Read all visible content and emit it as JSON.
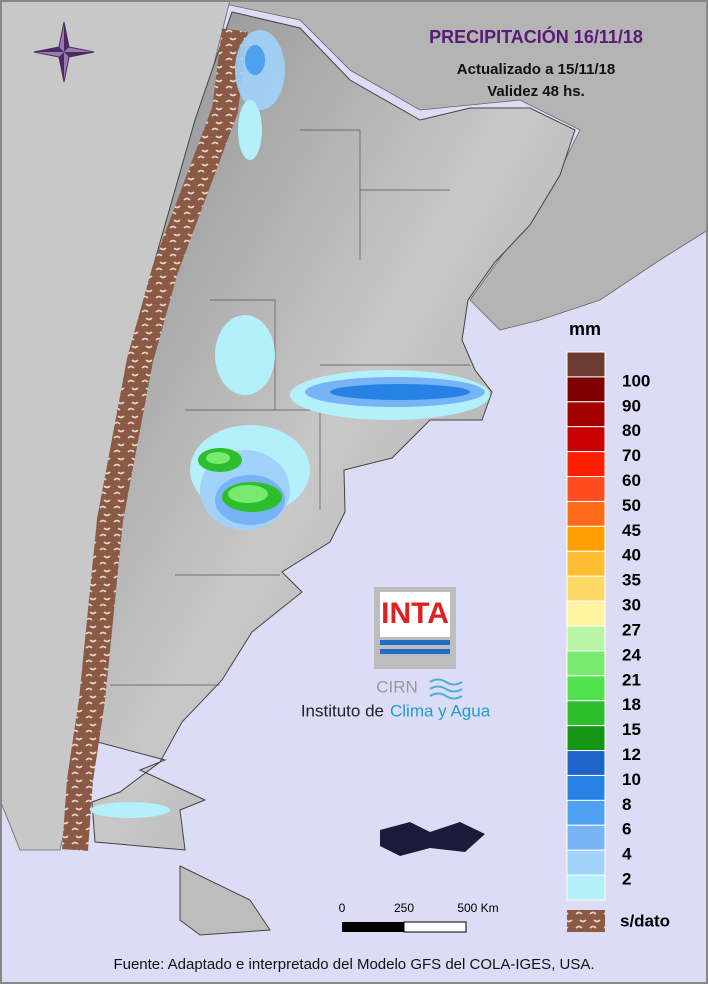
{
  "title": "PRECIPITACIÓN 16/11/18",
  "subtitle": [
    "Actualizado a 15/11/18",
    "Validez 48 hs."
  ],
  "legend": {
    "unit": "mm",
    "colors": [
      "#6b3b32",
      "#800000",
      "#a50000",
      "#c80000",
      "#ff1e00",
      "#ff4b1e",
      "#ff6a1a",
      "#ffa000",
      "#ffbe32",
      "#ffd764",
      "#fff5a0",
      "#b9f5a5",
      "#78eb6e",
      "#50e14b",
      "#2dbe2d",
      "#149614",
      "#1e64c8",
      "#2882e6",
      "#50a0f0",
      "#78b4f5",
      "#a0d2fa",
      "#b4f0fa"
    ],
    "labels": [
      "100",
      "90",
      "80",
      "70",
      "60",
      "50",
      "45",
      "40",
      "35",
      "30",
      "27",
      "24",
      "21",
      "18",
      "15",
      "12",
      "10",
      "8",
      "6",
      "4",
      "2"
    ],
    "no_data": "s/dato"
  },
  "scale_bar": {
    "labels": [
      "0",
      "250",
      "500 Km"
    ]
  },
  "logo": {
    "brand": "INTA",
    "unit": "CIRN",
    "name": "Instituto de",
    "name_accent": "Clima y Agua"
  },
  "source": "Fuente: Adaptado e interpretado del Modelo GFS del COLA-IGES, USA."
}
